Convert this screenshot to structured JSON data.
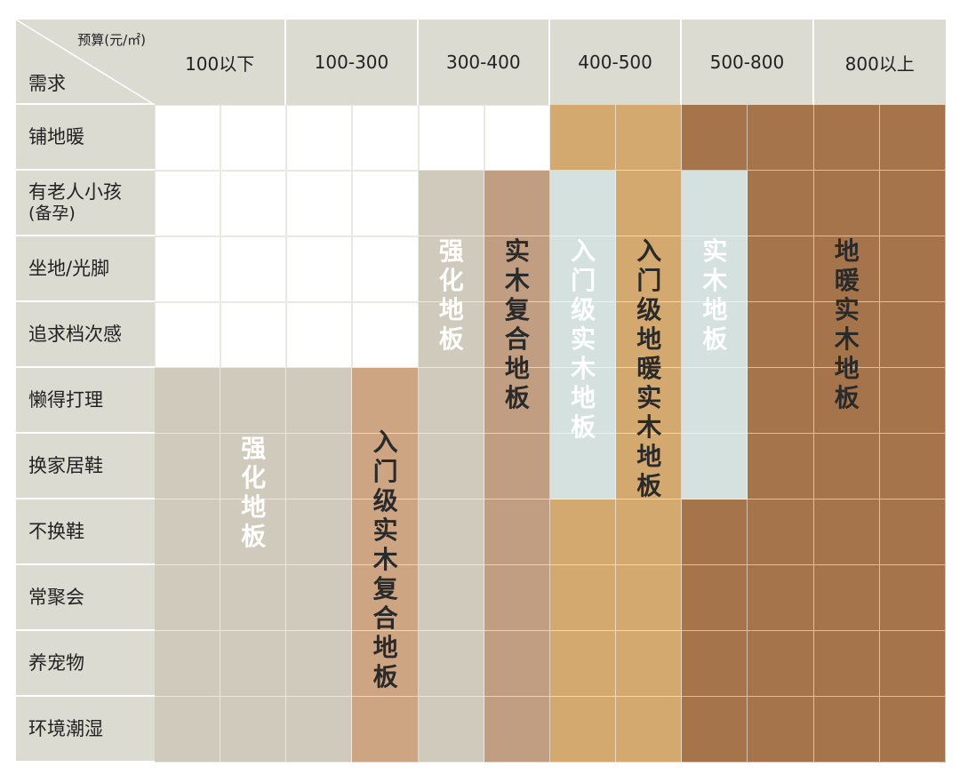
{
  "corner": {
    "top": "预算(元/㎡)",
    "bottom": "需求"
  },
  "columns": [
    "100以下",
    "100-300",
    "300-400",
    "400-500",
    "500-800",
    "800以上"
  ],
  "rows": [
    {
      "lines": [
        "铺地暖"
      ]
    },
    {
      "lines": [
        "有老人小孩",
        "(备孕)"
      ]
    },
    {
      "lines": [
        "坐地/光脚"
      ]
    },
    {
      "lines": [
        "追求档次感"
      ]
    },
    {
      "lines": [
        "懒得打理"
      ]
    },
    {
      "lines": [
        "换家居鞋"
      ]
    },
    {
      "lines": [
        "不换鞋"
      ]
    },
    {
      "lines": [
        "常聚会"
      ]
    },
    {
      "lines": [
        "养宠物"
      ]
    },
    {
      "lines": [
        "环境潮湿"
      ]
    }
  ],
  "colors": {
    "white": "#ffffff",
    "grey": "#d0cabd",
    "tan": "#cda583",
    "taupe": "#c19e82",
    "mint": "#d5e1de",
    "gold": "#d4a970",
    "brown": "#a5744b",
    "header": "#dcdbd2"
  },
  "grid": [
    [
      "white",
      "white",
      "white",
      "white",
      "white",
      "white",
      "gold",
      "gold",
      "brown",
      "brown",
      "brown",
      "brown"
    ],
    [
      "white",
      "white",
      "white",
      "white",
      "grey",
      "taupe",
      "mint",
      "gold",
      "mint",
      "brown",
      "brown",
      "brown"
    ],
    [
      "white",
      "white",
      "white",
      "white",
      "grey",
      "taupe",
      "mint",
      "gold",
      "mint",
      "brown",
      "brown",
      "brown"
    ],
    [
      "white",
      "white",
      "white",
      "white",
      "grey",
      "taupe",
      "mint",
      "gold",
      "mint",
      "brown",
      "brown",
      "brown"
    ],
    [
      "grey",
      "grey",
      "grey",
      "tan",
      "grey",
      "taupe",
      "mint",
      "gold",
      "mint",
      "brown",
      "brown",
      "brown"
    ],
    [
      "grey",
      "grey",
      "grey",
      "tan",
      "grey",
      "taupe",
      "mint",
      "gold",
      "mint",
      "brown",
      "brown",
      "brown"
    ],
    [
      "grey",
      "grey",
      "grey",
      "tan",
      "grey",
      "taupe",
      "gold",
      "gold",
      "brown",
      "brown",
      "brown",
      "brown"
    ],
    [
      "grey",
      "grey",
      "grey",
      "tan",
      "grey",
      "taupe",
      "gold",
      "gold",
      "brown",
      "brown",
      "brown",
      "brown"
    ],
    [
      "grey",
      "grey",
      "grey",
      "tan",
      "grey",
      "taupe",
      "gold",
      "gold",
      "brown",
      "brown",
      "brown",
      "brown"
    ],
    [
      "grey",
      "grey",
      "grey",
      "tan",
      "grey",
      "taupe",
      "gold",
      "gold",
      "brown",
      "brown",
      "brown",
      "brown"
    ]
  ],
  "labels": [
    {
      "text": "强化地板",
      "col": 1,
      "row": 5,
      "dark": false
    },
    {
      "text": "入门级实木复合地板",
      "col": 3,
      "row": 4.9,
      "dark": true
    },
    {
      "text": "强化地板",
      "col": 4,
      "row": 2.0,
      "dark": false
    },
    {
      "text": "实木复合地板",
      "col": 5,
      "row": 2.0,
      "dark": true
    },
    {
      "text": "入门级实木地板",
      "col": 6,
      "row": 2.0,
      "dark": false
    },
    {
      "text": "入门级地暖实木地板",
      "col": 7,
      "row": 2.0,
      "dark": true
    },
    {
      "text": "实木地板",
      "col": 8,
      "row": 2.0,
      "dark": false
    },
    {
      "text": "地暖实木地板",
      "col": 10,
      "row": 2.0,
      "dark": true
    }
  ]
}
